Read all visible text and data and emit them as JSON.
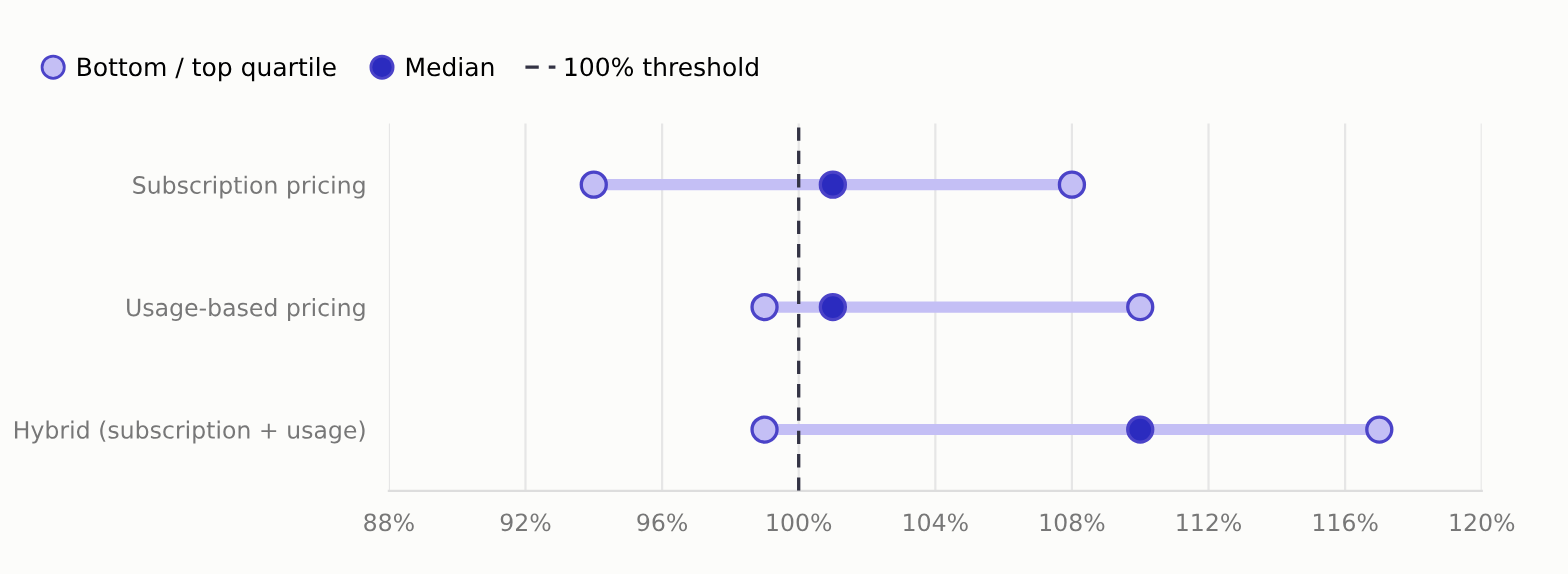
{
  "chart_data": {
    "type": "scatter",
    "orientation": "horizontal",
    "categories": [
      "Subscription pricing",
      "Usage-based pricing",
      "Hybrid (subscription + usage)"
    ],
    "series": [
      {
        "name": "Bottom / top quartile",
        "color": "#c4bff5",
        "values": [
          94,
          99,
          99
        ]
      },
      {
        "color": "#c4bff5",
        "values": [
          108,
          110,
          117
        ]
      },
      {
        "name": "Median",
        "color": "#2b2bbf",
        "values": [
          101,
          101,
          110
        ]
      }
    ],
    "xlim": [
      88,
      120
    ],
    "xticks": [
      {
        "value": 88,
        "label": "88%"
      },
      {
        "value": 92,
        "label": "92%"
      },
      {
        "value": 96,
        "label": "96%"
      },
      {
        "value": 100,
        "label": "100%"
      },
      {
        "value": 104,
        "label": "104%"
      },
      {
        "value": 108,
        "label": "108%"
      },
      {
        "value": 112,
        "label": "112%"
      },
      {
        "value": 116,
        "label": "116%"
      },
      {
        "value": 120,
        "label": "120%"
      }
    ],
    "ref_lines": [
      {
        "axis": "x",
        "value": 100,
        "label": "100% threshold",
        "color": "#333344",
        "line_style": "dashed"
      }
    ],
    "grid": "x",
    "legend": "top left",
    "marker": "circle"
  }
}
